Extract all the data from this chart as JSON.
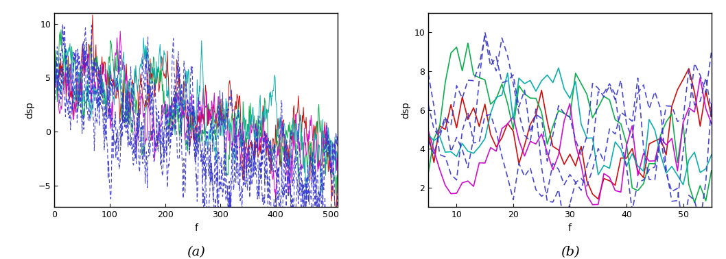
{
  "title_a": "(a)",
  "title_b": "(b)",
  "xlabel": "f",
  "ylabel": "dsp",
  "xlim_a": [
    0,
    512
  ],
  "ylim_a": [
    -7,
    11
  ],
  "xlim_b": [
    5,
    55
  ],
  "ylim_b": [
    1,
    11
  ],
  "yticks_a": [
    -5,
    0,
    5,
    10
  ],
  "yticks_b": [
    2,
    4,
    6,
    8,
    10
  ],
  "xticks_a": [
    0,
    100,
    200,
    300,
    400,
    500
  ],
  "xticks_b": [
    10,
    20,
    30,
    40,
    50
  ],
  "solid_colors": [
    "#cc0000",
    "#00aa44",
    "#cc00cc",
    "#00aaaa"
  ],
  "dashed_color": "#3333cc",
  "n_solid": 4,
  "n_dashed": 3,
  "N": 512,
  "figsize": [
    10.58,
    3.78
  ],
  "dpi": 100
}
